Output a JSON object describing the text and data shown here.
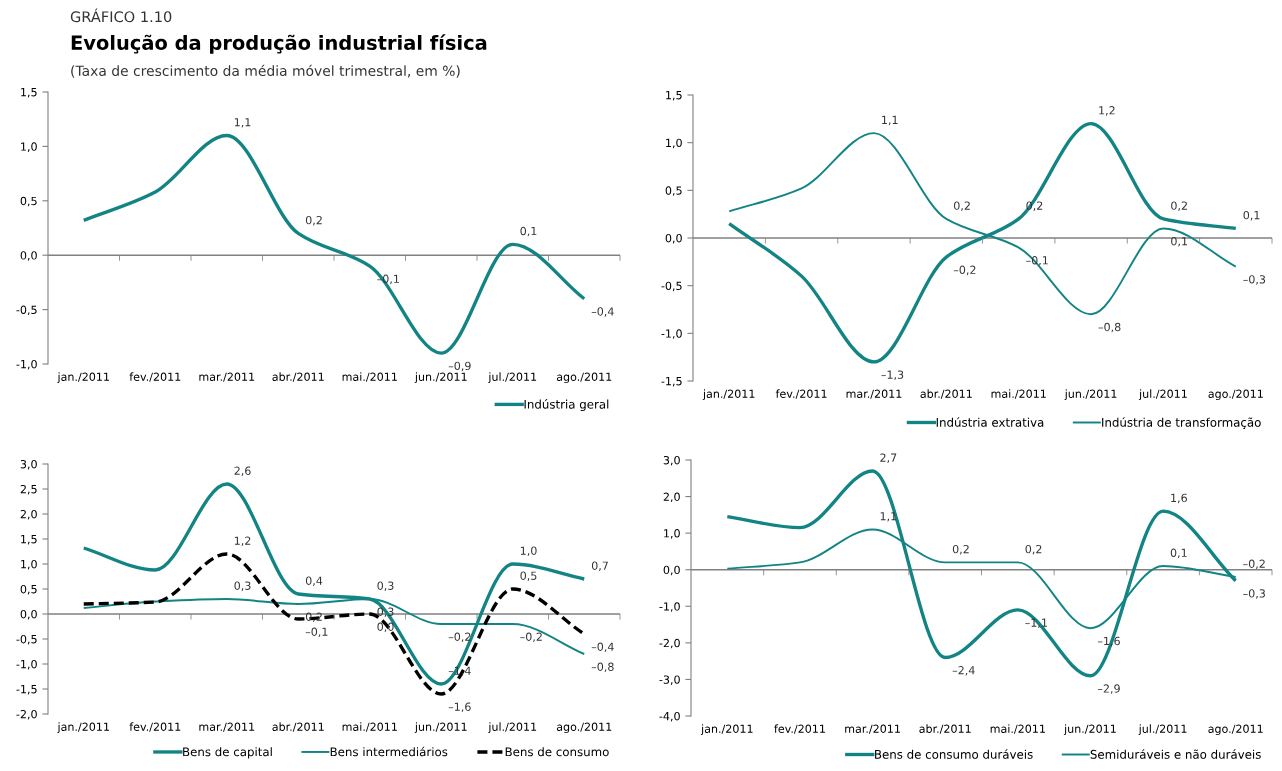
{
  "chart_data": [
    {
      "type": "line",
      "title": "Evolução da produção industrial física",
      "subtitle": "(Taxa de crescimento da média móvel trimestral, em %)",
      "annotations": [
        "GRÁFICO 1.10"
      ],
      "categories": [
        "jan./2011",
        "fev./2011",
        "mar./2011",
        "abr./2011",
        "mai./2011",
        "jun./2011",
        "jul./2011",
        "ago./2011"
      ],
      "ylim": [
        -1.0,
        1.5
      ],
      "yticks": [
        {
          "value": -1.0,
          "label": "-1,0"
        },
        {
          "value": -0.5,
          "label": "-0,5"
        },
        {
          "value": 0.0,
          "label": "0,0"
        },
        {
          "value": 0.5,
          "label": "0,5"
        },
        {
          "value": 1.0,
          "label": "1,0"
        },
        {
          "value": 1.5,
          "label": "1,5"
        }
      ],
      "legend": "bottom right",
      "grid": false,
      "marker": "none",
      "ref_lines": [
        {
          "axis": "y",
          "value": 0.0
        }
      ],
      "series": [
        {
          "name": "Indústria geral",
          "color": "#138484",
          "line_style": "solid",
          "values": [
            0.32,
            0.58,
            1.1,
            0.2,
            -0.1,
            -0.9,
            0.1,
            -0.4
          ],
          "value_labels": [
            null,
            null,
            "1,1",
            "0,2",
            "–0,1",
            "–0,9",
            "0,1",
            "–0,4"
          ]
        }
      ]
    },
    {
      "type": "line",
      "categories": [
        "jan./2011",
        "fev./2011",
        "mar./2011",
        "abr./2011",
        "mai./2011",
        "jun./2011",
        "jul./2011",
        "ago./2011"
      ],
      "ylim": [
        -1.5,
        1.5
      ],
      "yticks": [
        {
          "value": -1.5,
          "label": "-1,5"
        },
        {
          "value": -1.0,
          "label": "-1,0"
        },
        {
          "value": -0.5,
          "label": "-0,5"
        },
        {
          "value": 0.0,
          "label": "0,0"
        },
        {
          "value": 0.5,
          "label": "0,5"
        },
        {
          "value": 1.0,
          "label": "1,0"
        },
        {
          "value": 1.5,
          "label": "1,5"
        }
      ],
      "legend": "bottom right",
      "grid": false,
      "marker": "none",
      "ref_lines": [
        {
          "axis": "y",
          "value": 0.0
        }
      ],
      "series": [
        {
          "name": "Indústria extrativa",
          "color": "#138484",
          "line_style": "solid",
          "values": [
            0.15,
            -0.4,
            -1.3,
            -0.2,
            0.2,
            1.2,
            0.2,
            0.1
          ],
          "value_labels": [
            null,
            null,
            "–1,3",
            "–0,2",
            "0,2",
            "1,2",
            "0,2",
            "0,1"
          ]
        },
        {
          "name": "Indústria de transformação",
          "color": "#138484",
          "line_style": "solid",
          "values": [
            0.28,
            0.52,
            1.1,
            0.2,
            -0.1,
            -0.8,
            0.1,
            -0.3
          ],
          "value_labels": [
            null,
            null,
            "1,1",
            "0,2",
            "–0,1",
            "–0,8",
            "0,1",
            "–0,3"
          ]
        }
      ]
    },
    {
      "type": "line",
      "categories": [
        "jan./2011",
        "fev./2011",
        "mar./2011",
        "abr./2011",
        "mai./2011",
        "jun./2011",
        "jul./2011",
        "ago./2011"
      ],
      "ylim": [
        -2.0,
        3.0
      ],
      "yticks": [
        {
          "value": -2.0,
          "label": "-2,0"
        },
        {
          "value": -1.5,
          "label": "-1,5"
        },
        {
          "value": -1.0,
          "label": "-1,0"
        },
        {
          "value": -0.5,
          "label": "-0,5"
        },
        {
          "value": 0.0,
          "label": "0,0"
        },
        {
          "value": 0.5,
          "label": "0,5"
        },
        {
          "value": 1.0,
          "label": "1,0"
        },
        {
          "value": 1.5,
          "label": "1,5"
        },
        {
          "value": 2.0,
          "label": "2,0"
        },
        {
          "value": 2.5,
          "label": "2,5"
        },
        {
          "value": 3.0,
          "label": "3,0"
        }
      ],
      "legend": "bottom right",
      "grid": false,
      "marker": "none",
      "ref_lines": [
        {
          "axis": "y",
          "value": 0.0
        }
      ],
      "series": [
        {
          "name": "Bens de capital",
          "color": "#138484",
          "line_style": "solid",
          "values": [
            1.32,
            0.88,
            2.6,
            0.4,
            0.3,
            -1.4,
            1.0,
            0.7
          ],
          "value_labels": [
            null,
            null,
            "2,6",
            "0,4",
            "0,3",
            "–1,4",
            "1,0",
            "0,7"
          ]
        },
        {
          "name": "Bens intermediários",
          "color": "#138484",
          "line_style": "solid",
          "values": [
            0.12,
            0.25,
            0.3,
            0.2,
            0.3,
            -0.2,
            -0.2,
            -0.8
          ],
          "value_labels": [
            null,
            null,
            "0,3",
            "0,2",
            "0,3",
            "–0,2",
            "–0,2",
            "–0,8"
          ]
        },
        {
          "name": "Bens de consumo",
          "color": "#000000",
          "line_style": "dashed",
          "values": [
            0.2,
            0.24,
            1.2,
            -0.1,
            0.0,
            -1.6,
            0.5,
            -0.4
          ],
          "value_labels": [
            null,
            null,
            "1,2",
            "–0,1",
            "0,0",
            "–1,6",
            "0,5",
            "–0,4"
          ]
        }
      ]
    },
    {
      "type": "line",
      "categories": [
        "jan./2011",
        "fev./2011",
        "mar./2011",
        "abr./2011",
        "mai./2011",
        "jun./2011",
        "jul./2011",
        "ago./2011"
      ],
      "ylim": [
        -4.0,
        3.0
      ],
      "yticks": [
        {
          "value": -4.0,
          "label": "-4,0"
        },
        {
          "value": -3.0,
          "label": "-3,0"
        },
        {
          "value": -2.0,
          "label": "-2,0"
        },
        {
          "value": -1.0,
          "label": "-1,0"
        },
        {
          "value": 0.0,
          "label": "0,0"
        },
        {
          "value": 1.0,
          "label": "1,0"
        },
        {
          "value": 2.0,
          "label": "2,0"
        },
        {
          "value": 3.0,
          "label": "3,0"
        }
      ],
      "legend": "bottom right",
      "grid": false,
      "marker": "none",
      "ref_lines": [
        {
          "axis": "y",
          "value": 0.0
        }
      ],
      "series": [
        {
          "name": "Bens de consumo duráveis",
          "color": "#138484",
          "line_style": "solid",
          "values": [
            1.45,
            1.15,
            2.7,
            -2.4,
            -1.1,
            -2.9,
            1.6,
            -0.3
          ],
          "value_labels": [
            null,
            null,
            "2,7",
            "–2,4",
            "–1,1",
            "–2,9",
            "1,6",
            "–0,3"
          ]
        },
        {
          "name": "Semiduráveis e não duráveis",
          "color": "#138484",
          "line_style": "solid",
          "values": [
            0.03,
            0.2,
            1.1,
            0.2,
            0.2,
            -1.6,
            0.1,
            -0.2
          ],
          "value_labels": [
            null,
            null,
            "1,1",
            "0,2",
            "0,2",
            "–1,6",
            "0,1",
            "–0,2"
          ]
        }
      ]
    }
  ]
}
